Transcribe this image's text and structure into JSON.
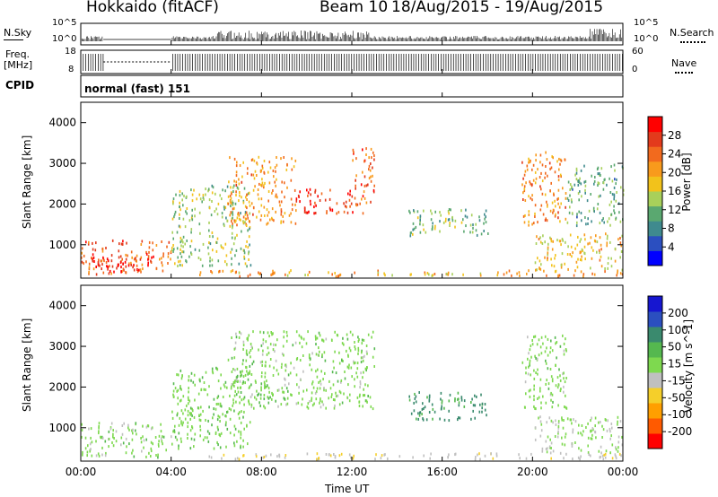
{
  "header": {
    "title": "Hokkaido (fitACF)",
    "beam": "Beam 10",
    "date_range": "18/Aug/2015 - 19/Aug/2015"
  },
  "noise_panel": {
    "left_label": "N.Sky",
    "right_label": "N.Search",
    "left_ticks": [
      "10^5",
      "10^0"
    ],
    "right_ticks": [
      "10^5",
      "10^0"
    ]
  },
  "freq_panel": {
    "left_label_line1": "Freq.",
    "left_label_line2": "[MHz]",
    "right_label": "Nave",
    "left_ticks": [
      "18",
      "8"
    ],
    "right_ticks": [
      "60",
      "0"
    ]
  },
  "cpid_panel": {
    "left_label": "CPID",
    "mode_text": "normal (fast) 151"
  },
  "colors": {
    "power_scale": [
      "#0000ff",
      "#2b4fc0",
      "#3f8a8e",
      "#5aa870",
      "#a8d05a",
      "#f2c21b",
      "#f89a1c",
      "#f26a1e",
      "#e33a1c",
      "#ff0000"
    ],
    "velocity_scale": [
      "#ff0000",
      "#ff5a00",
      "#ff9f00",
      "#f5cf2a",
      "#c0c0c0",
      "#7ed94f",
      "#55b84f",
      "#3a8a6e",
      "#2b4fc0",
      "#1616d0"
    ]
  },
  "chart_data": [
    {
      "type": "heatmap",
      "panel": "power",
      "xlabel": "",
      "ylabel": "Slant Range [km]",
      "ylim": [
        180,
        4500
      ],
      "y_ticks": [
        1000,
        2000,
        3000,
        4000
      ],
      "colorbar_label": "Power [dB]",
      "colorbar_ticks": [
        4,
        8,
        12,
        16,
        20,
        24,
        28
      ],
      "colorbar_range": [
        0,
        32
      ],
      "regions": [
        {
          "t": [
            0.0,
            4.0
          ],
          "r": [
            300,
            1150
          ],
          "v": 25
        },
        {
          "t": [
            0.5,
            3.2
          ],
          "r": [
            380,
            800
          ],
          "v": 30
        },
        {
          "t": [
            4.0,
            7.5
          ],
          "r": [
            500,
            2500
          ],
          "v": 14
        },
        {
          "t": [
            6.5,
            9.5
          ],
          "r": [
            1500,
            3200
          ],
          "v": 21
        },
        {
          "t": [
            9.5,
            12.5
          ],
          "r": [
            1800,
            2400
          ],
          "v": 28
        },
        {
          "t": [
            12.0,
            13.0
          ],
          "r": [
            2000,
            3400
          ],
          "v": 25
        },
        {
          "t": [
            14.5,
            18.0
          ],
          "r": [
            1200,
            1900
          ],
          "v": 12
        },
        {
          "t": [
            19.5,
            21.5
          ],
          "r": [
            1500,
            3300
          ],
          "v": 22
        },
        {
          "t": [
            20.0,
            24.0
          ],
          "r": [
            400,
            1300
          ],
          "v": 18
        },
        {
          "t": [
            21.5,
            24.0
          ],
          "r": [
            1500,
            3000
          ],
          "v": 11
        },
        {
          "t": [
            5.0,
            24.0
          ],
          "r": [
            250,
            400
          ],
          "v": 20
        }
      ]
    },
    {
      "type": "heatmap",
      "panel": "velocity",
      "xlabel": "Time UT",
      "ylabel": "Slant Range [km]",
      "ylim": [
        180,
        4500
      ],
      "y_ticks": [
        1000,
        2000,
        3000,
        4000
      ],
      "colorbar_label": "Velocity [m s^-1]",
      "colorbar_ticks": [
        200,
        100,
        50,
        15,
        -15,
        -50,
        -100,
        -200
      ],
      "x_ticks": [
        "00:00",
        "04:00",
        "08:00",
        "12:00",
        "16:00",
        "20:00",
        "00:00"
      ],
      "x_range_hours": [
        0,
        24
      ],
      "regions": [
        {
          "t": [
            0.0,
            4.0
          ],
          "r": [
            300,
            1150
          ],
          "v": 0
        },
        {
          "t": [
            4.0,
            7.5
          ],
          "r": [
            500,
            2500
          ],
          "v": 5
        },
        {
          "t": [
            6.5,
            13.0
          ],
          "r": [
            1500,
            3400
          ],
          "v": 0
        },
        {
          "t": [
            14.5,
            18.0
          ],
          "r": [
            1200,
            1900
          ],
          "v": 60
        },
        {
          "t": [
            19.5,
            21.5
          ],
          "r": [
            1500,
            3300
          ],
          "v": 0
        },
        {
          "t": [
            20.0,
            24.0
          ],
          "r": [
            400,
            1300
          ],
          "v": -10
        },
        {
          "t": [
            5.0,
            24.0
          ],
          "r": [
            250,
            400
          ],
          "v": -40
        }
      ]
    }
  ]
}
